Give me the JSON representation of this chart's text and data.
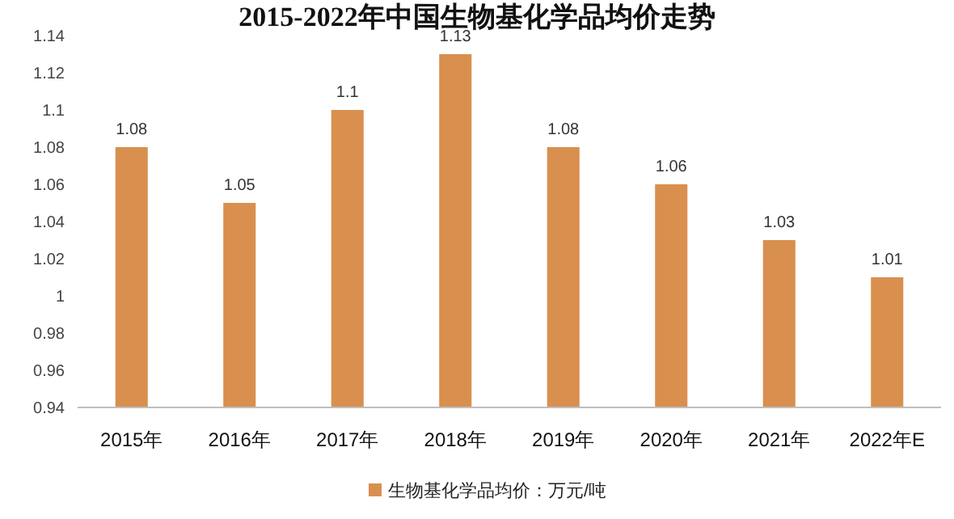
{
  "chart_data": {
    "type": "bar",
    "title": "2015-2022年中国生物基化学品均价走势",
    "categories": [
      "2015年",
      "2016年",
      "2017年",
      "2018年",
      "2019年",
      "2020年",
      "2021年",
      "2022年E"
    ],
    "series": [
      {
        "name": "生物基化学品均价：万元/吨",
        "color": "#d98f4e",
        "values": [
          1.08,
          1.05,
          1.1,
          1.13,
          1.08,
          1.06,
          1.03,
          1.01
        ]
      }
    ],
    "ylim": [
      0.94,
      1.14
    ],
    "yticks": [
      0.94,
      0.96,
      0.98,
      1,
      1.02,
      1.04,
      1.06,
      1.08,
      1.1,
      1.12,
      1.14
    ],
    "data_labels": true,
    "legend": "bottom",
    "grid": false
  }
}
